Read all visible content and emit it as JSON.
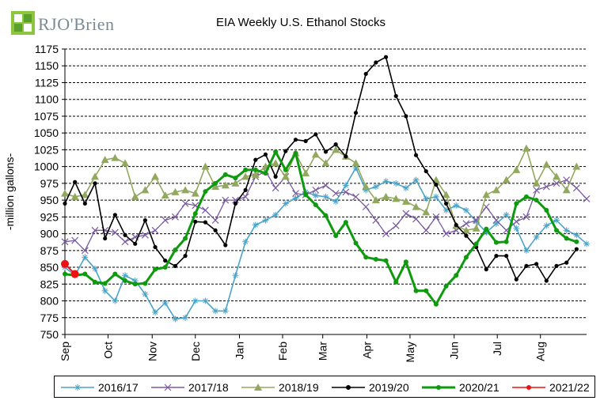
{
  "logo": {
    "text": "RJO'Brien",
    "icon": "rjo-brien-logo-mark"
  },
  "chart_data": {
    "type": "line",
    "title": "EIA Weekly U.S. Ethanol Stocks",
    "ylabel": "-million gallons-",
    "xlabel": "",
    "ylim": [
      750,
      1175
    ],
    "yticks": [
      750,
      775,
      800,
      825,
      850,
      875,
      900,
      925,
      950,
      975,
      1000,
      1025,
      1050,
      1075,
      1100,
      1125,
      1150,
      1175
    ],
    "xlim": [
      0,
      52
    ],
    "months": [
      {
        "label": "Sep",
        "x": 0
      },
      {
        "label": "Oct",
        "x": 4.3
      },
      {
        "label": "Nov",
        "x": 8.7
      },
      {
        "label": "Dec",
        "x": 13
      },
      {
        "label": "Jan",
        "x": 17.4
      },
      {
        "label": "Feb",
        "x": 21.7
      },
      {
        "label": "Mar",
        "x": 25.7
      },
      {
        "label": "Apr",
        "x": 30.1
      },
      {
        "label": "May",
        "x": 34.4
      },
      {
        "label": "Jun",
        "x": 38.8
      },
      {
        "label": "Jul",
        "x": 43.1
      },
      {
        "label": "Aug",
        "x": 47.4
      }
    ],
    "grid": true,
    "legend_position": "bottom",
    "series": [
      {
        "name": "2016/17",
        "color": "#4aa3c8",
        "marker": "asterisk",
        "values": [
          850,
          838,
          865,
          848,
          815,
          800,
          838,
          830,
          810,
          783,
          797,
          773,
          775,
          800,
          800,
          785,
          785,
          838,
          888,
          913,
          920,
          928,
          945,
          953,
          962,
          957,
          955,
          948,
          972,
          998,
          965,
          970,
          978,
          975,
          968,
          980,
          952,
          955,
          935,
          942,
          935,
          918,
          902,
          915,
          928,
          908,
          875,
          895,
          912,
          920,
          905,
          898,
          885
        ]
      },
      {
        "name": "2017/18",
        "color": "#7a5aa0",
        "marker": "x",
        "values": [
          888,
          890,
          875,
          905,
          905,
          902,
          888,
          895,
          898,
          905,
          920,
          925,
          945,
          942,
          935,
          920,
          950,
          950,
          955,
          985,
          993,
          968,
          985,
          960,
          958,
          965,
          972,
          960,
          962,
          955,
          940,
          920,
          900,
          912,
          930,
          922,
          905,
          925,
          900,
          905,
          915,
          920,
          940,
          920,
          905,
          918,
          925,
          965,
          970,
          975,
          980,
          968,
          952
        ]
      },
      {
        "name": "2018/19",
        "color": "#93a85f",
        "marker": "triangle",
        "values": [
          960,
          955,
          958,
          985,
          1010,
          1013,
          1005,
          955,
          965,
          985,
          957,
          962,
          965,
          960,
          1000,
          970,
          972,
          975,
          985,
          988,
          1000,
          1005,
          985,
          1020,
          990,
          1018,
          1005,
          1025,
          1015,
          1005,
          970,
          950,
          955,
          952,
          948,
          940,
          932,
          980,
          958,
          912,
          905,
          908,
          958,
          965,
          980,
          995,
          1027,
          975,
          1003,
          985,
          965,
          1000
        ]
      },
      {
        "name": "2019/20",
        "color": "#000000",
        "marker": "dot",
        "values": [
          945,
          977,
          945,
          975,
          893,
          928,
          898,
          885,
          920,
          880,
          860,
          852,
          867,
          918,
          917,
          905,
          883,
          945,
          965,
          1010,
          1018,
          985,
          1023,
          1040,
          1038,
          1048,
          1022,
          1033,
          1015,
          1080,
          1138,
          1155,
          1163,
          1105,
          1075,
          1017,
          993,
          973,
          945,
          913,
          897,
          880,
          847,
          867,
          867,
          832,
          852,
          855,
          830,
          852,
          857,
          877
        ]
      },
      {
        "name": "2020/21",
        "color": "#0d9a0d",
        "marker": "dot",
        "values": [
          840,
          838,
          840,
          828,
          826,
          840,
          830,
          825,
          826,
          847,
          850,
          876,
          893,
          930,
          963,
          975,
          988,
          983,
          995,
          995,
          990,
          1022,
          995,
          1020,
          958,
          943,
          927,
          897,
          917,
          886,
          865,
          862,
          860,
          828,
          858,
          815,
          815,
          795,
          822,
          838,
          865,
          885,
          907,
          887,
          888,
          945,
          955,
          950,
          935,
          905,
          893,
          888
        ]
      },
      {
        "name": "2021/22",
        "color": "#ee1111",
        "marker": "dot",
        "values": [
          855,
          840
        ]
      }
    ]
  }
}
